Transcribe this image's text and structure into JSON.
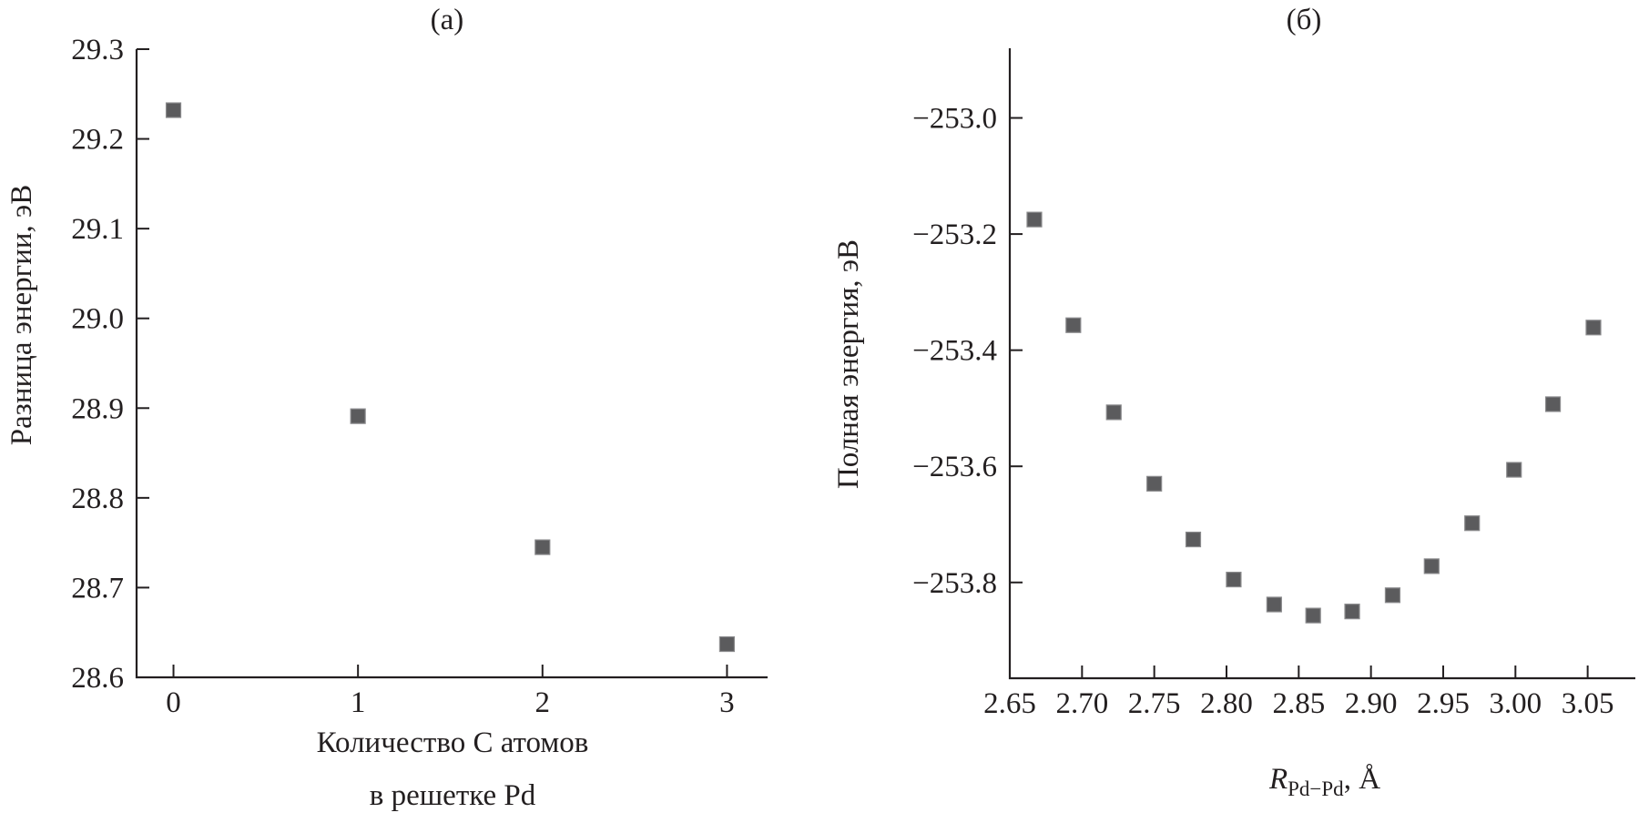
{
  "chart_data": [
    {
      "type": "scatter",
      "panel_label": "(a)",
      "ylabel": "Разница энергии, эВ",
      "xlabel_lines": [
        "Количество C атомов",
        "в решетке Pd"
      ],
      "xlim": [
        -0.2,
        3.22
      ],
      "ylim": [
        28.6,
        29.3
      ],
      "xticks": [
        0,
        1,
        2,
        3
      ],
      "xtick_labels": [
        "0",
        "1",
        "2",
        "3"
      ],
      "yticks": [
        28.6,
        28.7,
        28.8,
        28.9,
        29.0,
        29.1,
        29.2,
        29.3
      ],
      "ytick_labels": [
        "28.6",
        "28.7",
        "28.8",
        "28.9",
        "29.0",
        "29.1",
        "29.2",
        "29.3"
      ],
      "grid": false,
      "marker": "square",
      "marker_color": "#5b5b5d",
      "x": [
        0,
        1,
        2,
        3
      ],
      "y": [
        29.232,
        28.891,
        28.745,
        28.637
      ]
    },
    {
      "type": "scatter",
      "panel_label": "(б)",
      "ylabel": "Полная энергия, эВ",
      "xlabel": {
        "symbol": "R",
        "subscript": "Pd−Pd",
        "unit": ", Å"
      },
      "xlim": [
        2.65,
        3.083
      ],
      "ylim": [
        -253.965,
        -252.88
      ],
      "xticks": [
        2.65,
        2.7,
        2.75,
        2.8,
        2.85,
        2.9,
        2.95,
        3.0,
        3.05
      ],
      "xtick_labels": [
        "2.65",
        "2.70",
        "2.75",
        "2.80",
        "2.85",
        "2.90",
        "2.95",
        "3.00",
        "3.05"
      ],
      "yticks": [
        -253.0,
        -253.2,
        -253.4,
        -253.6,
        -253.8
      ],
      "ytick_labels": [
        "−253.0",
        "−253.2",
        "−253.4",
        "−253.6",
        "−253.8"
      ],
      "grid": false,
      "marker": "square",
      "marker_color": "#5b5b5d",
      "x": [
        2.667,
        2.694,
        2.722,
        2.75,
        2.777,
        2.805,
        2.833,
        2.86,
        2.887,
        2.915,
        2.942,
        2.97,
        2.999,
        3.026,
        3.054
      ],
      "y": [
        -253.175,
        -253.357,
        -253.507,
        -253.63,
        -253.726,
        -253.795,
        -253.838,
        -253.857,
        -253.85,
        -253.822,
        -253.772,
        -253.698,
        -253.606,
        -253.493,
        -253.361
      ]
    }
  ]
}
